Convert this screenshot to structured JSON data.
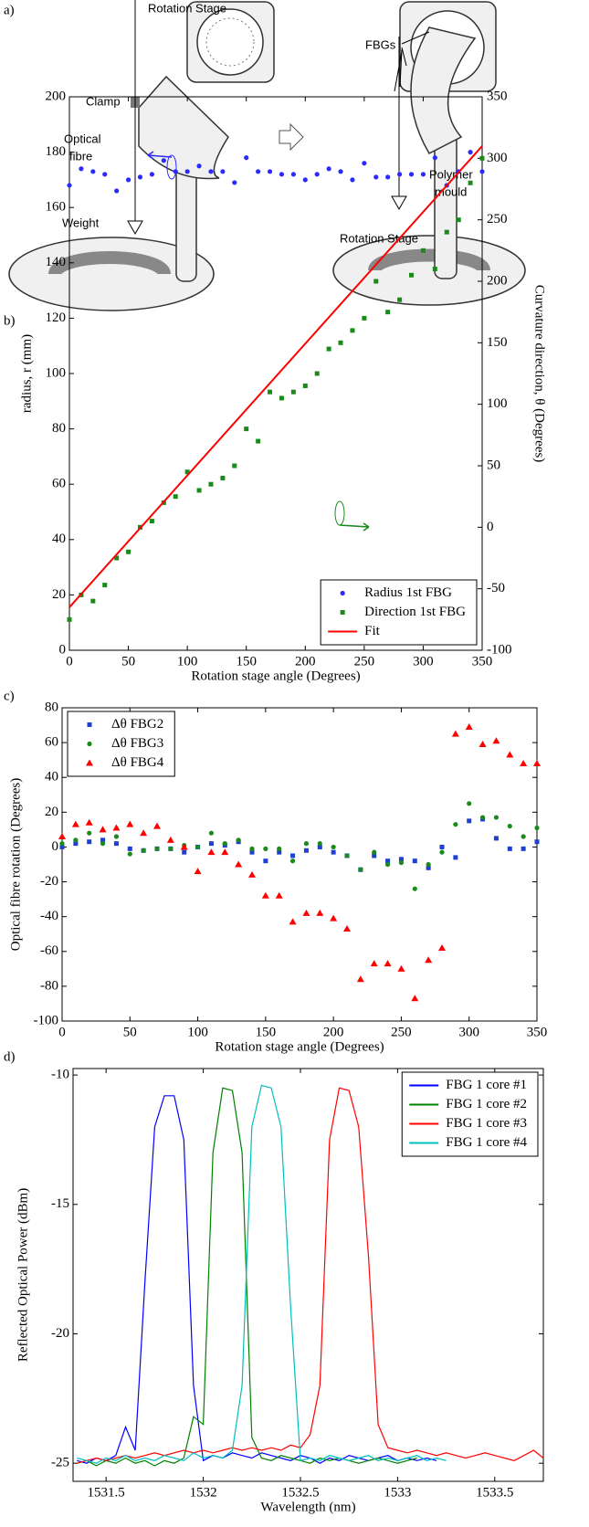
{
  "diagram": {
    "panel": "a)",
    "left": {
      "stage": "Rotation Stage",
      "clamp": "Clamp",
      "fibre": [
        "Optical",
        "fibre"
      ],
      "weight": "Weight"
    },
    "right": {
      "fbgs": "FBGs",
      "mould": [
        "Polymer",
        "mould"
      ],
      "stage": "Rotation Stage"
    }
  },
  "chart_data": [
    {
      "type": "scatter",
      "label": "b)",
      "xlabel": "Rotation stage angle (Degrees)",
      "ylabel": "radius, r (mm)",
      "y2label": "Curvature direction, θ (Degrees)",
      "ycolor": "#2b2bff",
      "y2color": "#1a8a1a",
      "legend": "lower right",
      "xlim": [
        0,
        350
      ],
      "xticks": [
        0,
        50,
        100,
        150,
        200,
        250,
        300,
        350
      ],
      "ylim": [
        0,
        200
      ],
      "yticks": [
        0,
        20,
        40,
        60,
        80,
        100,
        120,
        140,
        160,
        180,
        200
      ],
      "y2lim": [
        -100,
        350
      ],
      "y2ticks": [
        -100,
        -50,
        0,
        50,
        100,
        150,
        200,
        250,
        300,
        350
      ],
      "x": [
        0,
        10,
        20,
        30,
        40,
        50,
        60,
        70,
        80,
        90,
        100,
        110,
        120,
        130,
        140,
        150,
        160,
        170,
        180,
        190,
        200,
        210,
        220,
        230,
        240,
        250,
        260,
        270,
        280,
        290,
        300,
        310,
        320,
        330,
        340,
        350
      ],
      "series": [
        {
          "name": "Radius 1st FBG",
          "color": "#2b2bff",
          "marker": "circle",
          "values": [
            168,
            174,
            173,
            172,
            166,
            170,
            171,
            172,
            177,
            173,
            173,
            175,
            173,
            173,
            169,
            178,
            173,
            173,
            172,
            172,
            170,
            172,
            174,
            173,
            170,
            176,
            171,
            171,
            172,
            172,
            172,
            178,
            168,
            173,
            180,
            173
          ]
        },
        {
          "name": "Direction 1st FBG",
          "color": "#1a8a1a",
          "marker": "square",
          "axis": "y2",
          "values": [
            -75,
            -55,
            -60,
            -47,
            -25,
            -20,
            0,
            5,
            20,
            25,
            45,
            30,
            35,
            40,
            50,
            80,
            70,
            110,
            105,
            110,
            115,
            125,
            145,
            150,
            160,
            170,
            200,
            175,
            185,
            205,
            225,
            210,
            240,
            250,
            280,
            300
          ]
        },
        {
          "name": "Fit",
          "color": "#ff0000",
          "marker": "line",
          "axis": "y2",
          "x": [
            0,
            350
          ],
          "values": [
            -65,
            310
          ]
        }
      ]
    },
    {
      "type": "scatter",
      "label": "c)",
      "xlabel": "Rotation stage angle (Degrees)",
      "ylabel": "Optical fibre rotation (Degrees)",
      "legend": "upper left",
      "xlim": [
        0,
        350
      ],
      "xticks": [
        0,
        50,
        100,
        150,
        200,
        250,
        300,
        350
      ],
      "ylim": [
        -100,
        80
      ],
      "yticks": [
        -100,
        -80,
        -60,
        -40,
        -20,
        0,
        20,
        40,
        60,
        80
      ],
      "x": [
        0,
        10,
        20,
        30,
        40,
        50,
        60,
        70,
        80,
        90,
        100,
        110,
        120,
        130,
        140,
        150,
        160,
        170,
        180,
        190,
        200,
        210,
        220,
        230,
        240,
        250,
        260,
        270,
        280,
        290,
        300,
        310,
        320,
        330,
        340,
        350
      ],
      "series": [
        {
          "name": "Δθ FBG2",
          "color": "#1f3fd0",
          "marker": "square",
          "values": [
            0,
            2,
            3,
            4,
            2,
            -1,
            -2,
            -1,
            -1,
            -3,
            0,
            2,
            1,
            3,
            -3,
            -8,
            -3,
            -5,
            -2,
            0,
            -3,
            -5,
            -13,
            -5,
            -8,
            -7,
            -8,
            -12,
            0,
            -6,
            15,
            16,
            5,
            -1,
            -1,
            3
          ]
        },
        {
          "name": "Δθ FBG3",
          "color": "#1a8a1a",
          "marker": "circle",
          "values": [
            2,
            4,
            8,
            2,
            6,
            -4,
            -2,
            -1,
            -1,
            1,
            0,
            8,
            2,
            4,
            -1,
            -1,
            -1,
            -8,
            2,
            2,
            0,
            -5,
            -13,
            -3,
            -10,
            -9,
            -24,
            -10,
            -3,
            13,
            25,
            17,
            17,
            12,
            6,
            11
          ]
        },
        {
          "name": "Δθ FBG4",
          "color": "#ff0000",
          "marker": "triangle",
          "values": [
            6,
            13,
            14,
            10,
            11,
            13,
            8,
            12,
            4,
            0,
            -14,
            -3,
            -3,
            -10,
            -16,
            -28,
            -28,
            -43,
            -38,
            -38,
            -41,
            -47,
            -76,
            -67,
            -67,
            -70,
            -87,
            -65,
            -58,
            65,
            69,
            59,
            61,
            53,
            48,
            48
          ]
        }
      ]
    },
    {
      "type": "line",
      "label": "d)",
      "xlabel": "Wavelength (nm)",
      "ylabel": "Reflected Optical Power (dBm)",
      "legend": "upper right",
      "xlim": [
        1531.33,
        1533.75
      ],
      "xticks": [
        1531.5,
        1532,
        1532.5,
        1533,
        1533.5
      ],
      "ylim": [
        -25.7,
        -9.75
      ],
      "yticks": [
        -25,
        -20,
        -15,
        -10
      ],
      "x": [
        1531.35,
        1531.4,
        1531.45,
        1531.5,
        1531.55,
        1531.6,
        1531.65,
        1531.7,
        1531.75,
        1531.8,
        1531.85,
        1531.9,
        1531.95,
        1532,
        1532.05,
        1532.1,
        1532.15,
        1532.2,
        1532.25,
        1532.3,
        1532.35,
        1532.4,
        1532.45,
        1532.5,
        1532.55,
        1532.6,
        1532.65,
        1532.7,
        1532.75,
        1532.8,
        1532.85,
        1532.9,
        1532.95,
        1533,
        1533.05,
        1533.1,
        1533.15,
        1533.2,
        1533.25,
        1533.3,
        1533.35,
        1533.4,
        1533.45,
        1533.5,
        1533.55,
        1533.6,
        1533.65,
        1533.7,
        1533.75
      ],
      "series": [
        {
          "name": "FBG 1 core #1",
          "color": "#0000ff",
          "marker": "line",
          "values": [
            -24.9,
            -25.0,
            -24.8,
            -24.9,
            -24.7,
            -23.6,
            -24.5,
            -18,
            -12,
            -10.8,
            -10.8,
            -12.5,
            -22,
            -24.9,
            -24.7,
            -24.8,
            -24.6,
            -24.7,
            -24.8,
            -24.6,
            -24.7,
            -24.8,
            -24.9,
            -24.7,
            -24.8,
            -25.0,
            -24.8,
            -24.9,
            -24.7,
            -24.8,
            -24.9,
            -24.8,
            -24.7,
            -24.9,
            -24.8,
            -24.9,
            -24.8,
            -24.9,
            null,
            null,
            null,
            null,
            null,
            null,
            null,
            null,
            null,
            null,
            null
          ]
        },
        {
          "name": "FBG 1 core #2",
          "color": "#008000",
          "marker": "line",
          "values": [
            -25.0,
            -24.9,
            -25.1,
            -24.9,
            -25.0,
            -24.8,
            -25.0,
            -24.9,
            -25.1,
            -24.9,
            -25.0,
            -24.8,
            -23.2,
            -23.5,
            -13,
            -10.5,
            -10.6,
            -13,
            -24,
            -24.8,
            -24.9,
            -24.7,
            -24.8,
            -24.9,
            -25.0,
            -24.8,
            -24.9,
            -24.8,
            -24.9,
            -25.0,
            -24.9,
            -24.8,
            -24.9,
            -25.0,
            -24.9,
            -24.8,
            null,
            null,
            null,
            null,
            null,
            null,
            null,
            null,
            null,
            null,
            null,
            null,
            null
          ]
        },
        {
          "name": "FBG 1 core #3",
          "color": "#ff0000",
          "marker": "line",
          "values": [
            -25.0,
            -24.9,
            -24.8,
            -24.9,
            -24.8,
            -24.7,
            -24.8,
            -24.7,
            -24.6,
            -24.7,
            -24.6,
            -24.5,
            -24.6,
            -24.5,
            -24.6,
            -24.5,
            -24.4,
            -24.5,
            -24.4,
            -24.5,
            -24.4,
            -24.5,
            -24.3,
            -24.4,
            -23.9,
            -22,
            -12.5,
            -10.5,
            -10.6,
            -12,
            -17,
            -23.5,
            -24.4,
            -24.5,
            -24.6,
            -24.5,
            -24.6,
            -24.7,
            -24.6,
            -24.7,
            -24.8,
            -24.7,
            -24.6,
            -24.7,
            -24.8,
            -24.9,
            -24.7,
            -24.5,
            -24.8
          ]
        },
        {
          "name": "FBG 1 core #4",
          "color": "#00bfbf",
          "marker": "line",
          "values": [
            -24.8,
            -24.9,
            -25.0,
            -24.8,
            -24.9,
            -24.7,
            -24.9,
            -24.8,
            -24.9,
            -24.7,
            -24.8,
            -24.9,
            -24.6,
            -24.8,
            -24.7,
            -24.8,
            -24.5,
            -22,
            -12,
            -10.4,
            -10.5,
            -12,
            -19,
            -24.9,
            -24.8,
            -24.9,
            -24.7,
            -24.8,
            -24.9,
            -24.8,
            -24.7,
            -24.9,
            -24.8,
            -24.9,
            -24.8,
            -24.7,
            -24.9,
            -24.8,
            -24.9,
            null,
            null,
            null,
            null,
            null,
            null,
            null,
            null,
            null,
            null
          ]
        }
      ]
    }
  ]
}
